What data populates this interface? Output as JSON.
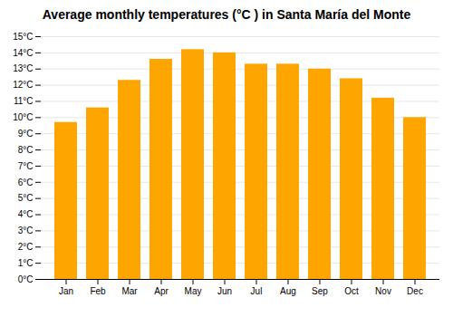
{
  "chart_data": {
    "type": "bar",
    "title": "Average monthly temperatures (°C ) in Santa María del Monte",
    "categories": [
      "Jan",
      "Feb",
      "Mar",
      "Apr",
      "May",
      "Jun",
      "Jul",
      "Aug",
      "Sep",
      "Oct",
      "Nov",
      "Dec"
    ],
    "values": [
      9.7,
      10.6,
      12.3,
      13.6,
      14.2,
      14.0,
      13.3,
      13.3,
      13.0,
      12.4,
      11.2,
      10.0
    ],
    "color": "#FFA500",
    "ylim": [
      0,
      15
    ],
    "yticks": [
      {
        "value": 0,
        "label": "0°C"
      },
      {
        "value": 1,
        "label": "1°C"
      },
      {
        "value": 2,
        "label": "2°C"
      },
      {
        "value": 3,
        "label": "3°C"
      },
      {
        "value": 4,
        "label": "4°C"
      },
      {
        "value": 5,
        "label": "5°C"
      },
      {
        "value": 6,
        "label": "6°C"
      },
      {
        "value": 7,
        "label": "7°C"
      },
      {
        "value": 8,
        "label": "8°C"
      },
      {
        "value": 9,
        "label": "9°C"
      },
      {
        "value": 10,
        "label": "10°C"
      },
      {
        "value": 11,
        "label": "11°C"
      },
      {
        "value": 12,
        "label": "12°C"
      },
      {
        "value": 13,
        "label": "13°C"
      },
      {
        "value": 14,
        "label": "14°C"
      },
      {
        "value": 15,
        "label": "15°C"
      }
    ],
    "grid": true
  }
}
